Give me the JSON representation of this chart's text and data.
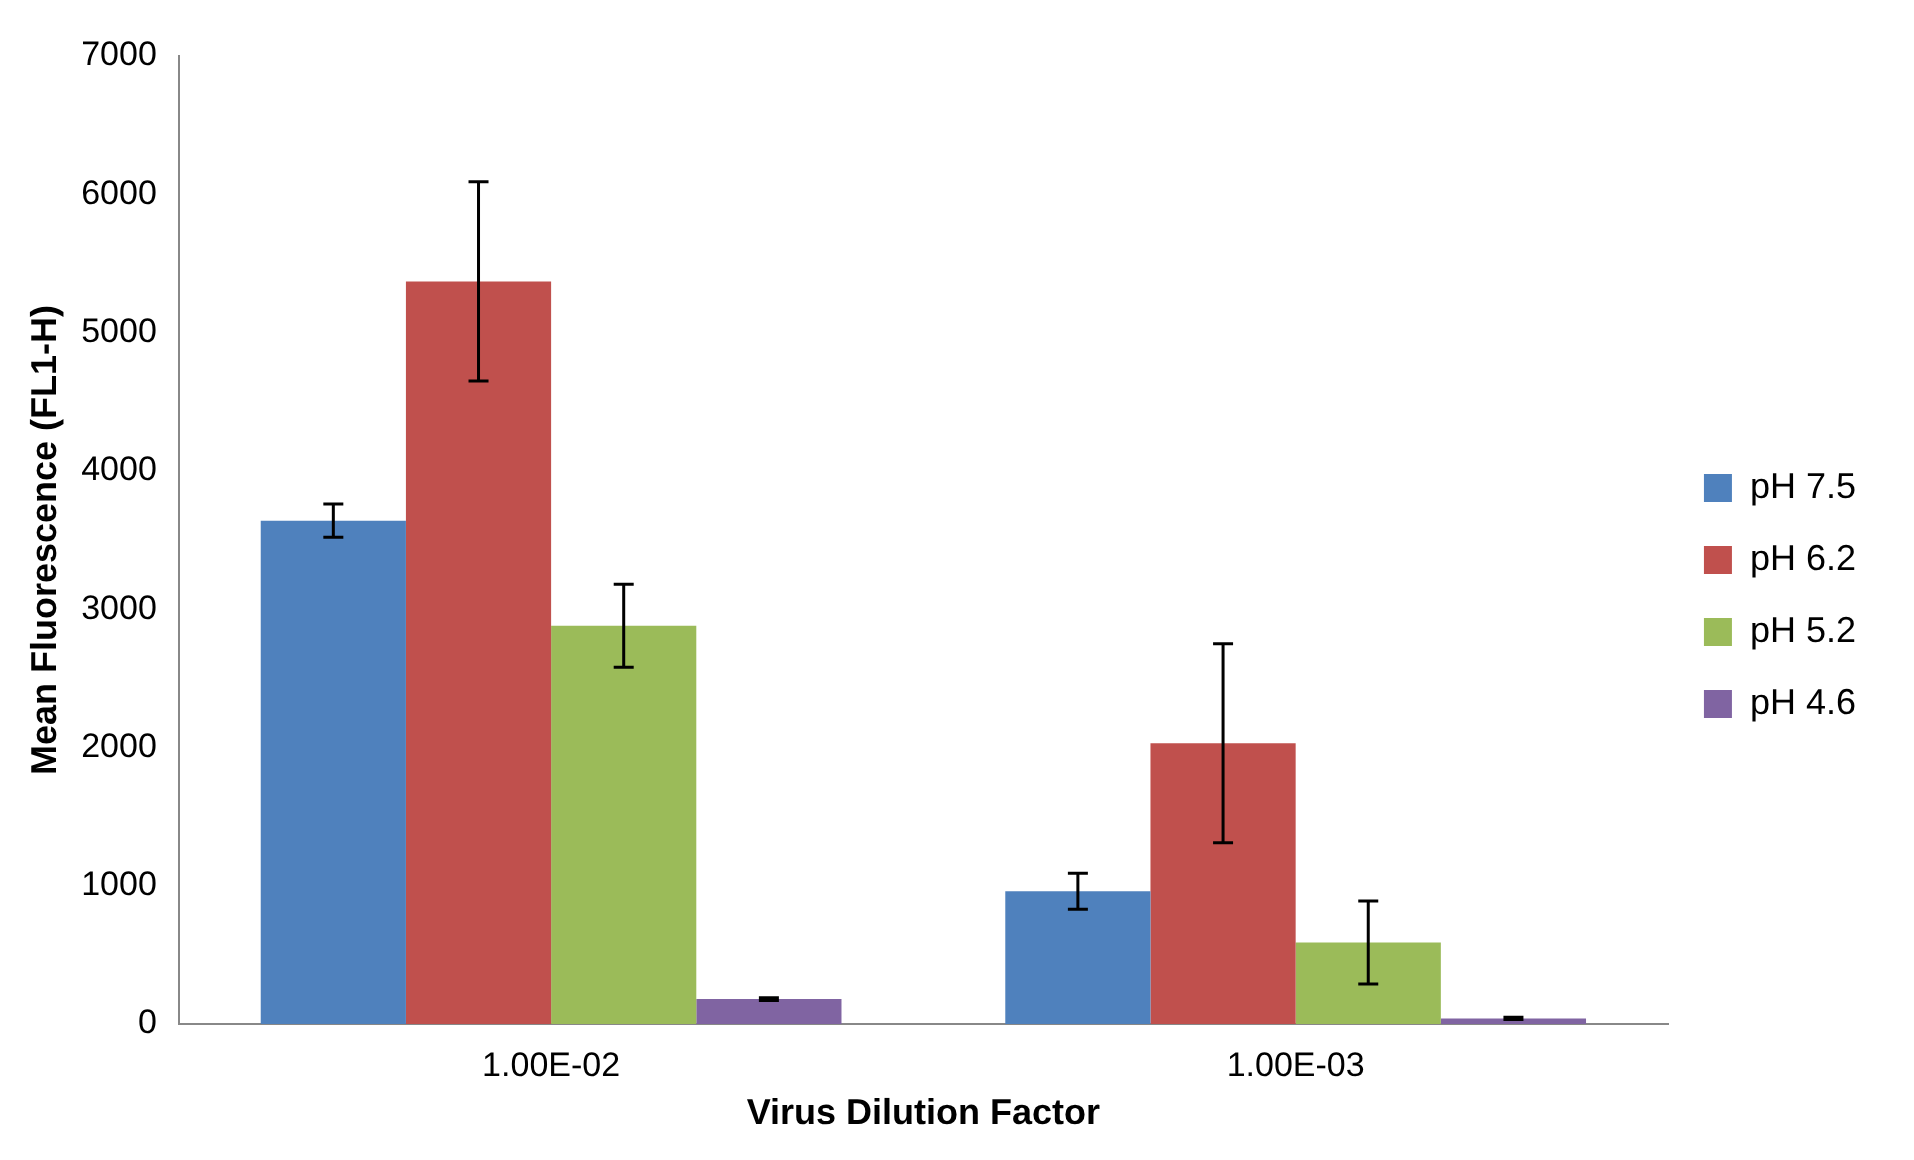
{
  "chart_data": {
    "type": "bar",
    "xlabel": "Virus Dilution Factor",
    "ylabel": "Mean Fluorescence (FL1-H)",
    "categories": [
      "1.00E-02",
      "1.00E-03"
    ],
    "series": [
      {
        "name": "pH 7.5",
        "color": "#4f81bd",
        "values": [
          3640,
          960
        ],
        "errors": [
          120,
          130
        ]
      },
      {
        "name": "pH 6.2",
        "color": "#c0504d",
        "values": [
          5370,
          2030
        ],
        "errors": [
          720,
          720
        ]
      },
      {
        "name": "pH 5.2",
        "color": "#9bbb59",
        "values": [
          2880,
          590
        ],
        "errors": [
          300,
          300
        ]
      },
      {
        "name": "pH 4.6",
        "color": "#8064a2",
        "values": [
          180,
          40
        ],
        "errors": [
          10,
          8
        ]
      }
    ],
    "ylim": [
      0,
      7000
    ],
    "yticks": [
      0,
      1000,
      2000,
      3000,
      4000,
      5000,
      6000,
      7000
    ],
    "grid": false,
    "legend": "right"
  }
}
